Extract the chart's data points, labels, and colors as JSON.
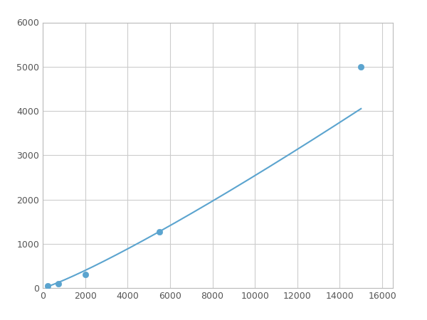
{
  "x_points": [
    250,
    750,
    2000,
    5500,
    15000
  ],
  "y_points": [
    50,
    100,
    300,
    1275,
    5000
  ],
  "line_color": "#5BA4CF",
  "marker_color": "#5BA4CF",
  "marker_size": 6,
  "marker_style": "o",
  "line_width": 1.5,
  "xlim": [
    0,
    16500
  ],
  "ylim": [
    0,
    6000
  ],
  "xticks": [
    0,
    2000,
    4000,
    6000,
    8000,
    10000,
    12000,
    14000,
    16000
  ],
  "yticks": [
    0,
    1000,
    2000,
    3000,
    4000,
    5000,
    6000
  ],
  "grid": true,
  "grid_color": "#cccccc",
  "grid_linestyle": "-",
  "grid_linewidth": 0.8,
  "background_color": "#ffffff",
  "spine_color": "#bbbbbb",
  "figsize": [
    6.0,
    4.5
  ],
  "dpi": 100
}
